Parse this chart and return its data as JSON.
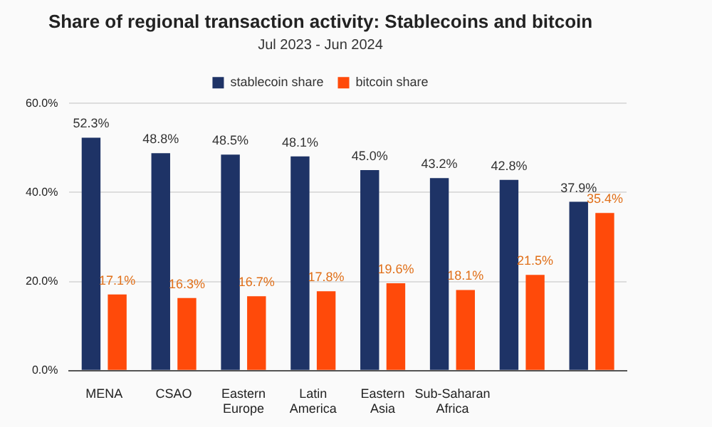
{
  "chart_data": {
    "type": "bar",
    "title": "Share of regional transaction activity: Stablecoins and bitcoin",
    "subtitle": "Jul 2023 - Jun 2024",
    "categories": [
      "MENA",
      "CSAO",
      "Eastern Europe",
      "Latin America",
      "Eastern Asia",
      "Sub-Saharan Africa",
      null,
      null
    ],
    "series": [
      {
        "name": "stablecoin share",
        "color": "#1e3366",
        "values": [
          52.3,
          48.8,
          48.5,
          48.1,
          45.0,
          43.2,
          42.8,
          37.9
        ],
        "value_labels": [
          "52.3%",
          "48.8%",
          "48.5%",
          "48.1%",
          "45.0%",
          "43.2%",
          "42.8%",
          "37.9%"
        ]
      },
      {
        "name": "bitcoin share",
        "color": "#ff4a0a",
        "values": [
          17.1,
          16.3,
          16.7,
          17.8,
          19.6,
          18.1,
          21.5,
          35.4
        ],
        "value_labels": [
          "17.1%",
          "16.3%",
          "16.7%",
          "17.8%",
          "19.6%",
          "18.1%",
          "21.5%",
          "35.4%"
        ]
      }
    ],
    "ylim": [
      0,
      60
    ],
    "yticks": [
      {
        "value": 0,
        "label": "0.0%"
      },
      {
        "value": 20,
        "label": "20.0%"
      },
      {
        "value": 40,
        "label": "40.0%"
      },
      {
        "value": 60,
        "label": "60.0%"
      }
    ],
    "grid": "y",
    "legend": "top"
  }
}
